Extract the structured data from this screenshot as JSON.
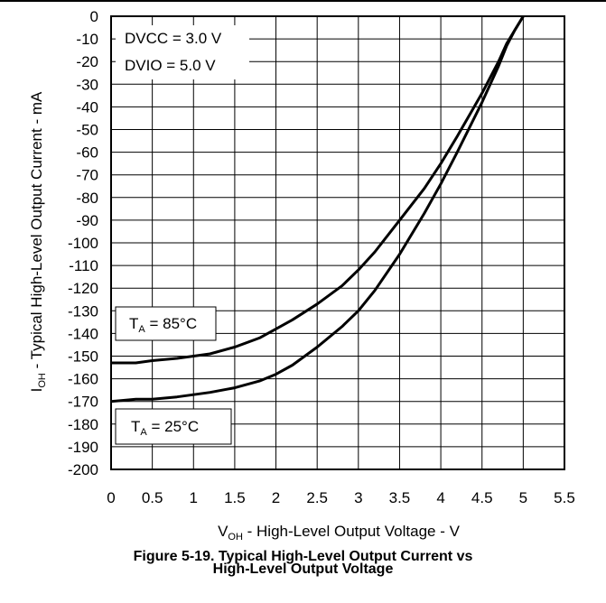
{
  "figure": {
    "caption_line1": "Figure 5-19. Typical High-Level Output Current vs",
    "caption_line2": "High-Level Output Voltage"
  },
  "chart_data": {
    "type": "line",
    "xlabel": {
      "main": "V",
      "sub": "OH",
      "rest": " - High-Level Output Voltage - V"
    },
    "ylabel": {
      "main": "I",
      "sub": "OH",
      "rest": " - Typical High-Level Output Current - mA"
    },
    "xlim": [
      0,
      5.5
    ],
    "ylim": [
      -200,
      0
    ],
    "xticks": [
      "0",
      "0.5",
      "1",
      "1.5",
      "2",
      "2.5",
      "3",
      "3.5",
      "4",
      "4.5",
      "5",
      "5.5"
    ],
    "yticks": [
      "0",
      "-10",
      "-20",
      "-30",
      "-40",
      "-50",
      "-60",
      "-70",
      "-80",
      "-90",
      "-100",
      "-110",
      "-120",
      "-130",
      "-140",
      "-150",
      "-160",
      "-170",
      "-180",
      "-190",
      "-200"
    ],
    "grid": true,
    "annotations": {
      "conditions": [
        "DVCC = 3.0 V",
        "DVIO = 5.0 V"
      ],
      "ta85": {
        "main": "T",
        "sub": "A",
        "rest": " = 85°C"
      },
      "ta25": {
        "main": "T",
        "sub": "A",
        "rest": " = 25°C"
      }
    },
    "series": [
      {
        "label_ref": "ta85",
        "x": [
          0,
          0.3,
          0.5,
          0.8,
          1.0,
          1.2,
          1.5,
          1.8,
          2.0,
          2.2,
          2.5,
          2.8,
          3.0,
          3.2,
          3.5,
          3.8,
          4.0,
          4.2,
          4.5,
          4.7,
          4.8,
          4.9,
          5.0
        ],
        "y": [
          -153,
          -153,
          -152,
          -151,
          -150,
          -149,
          -146,
          -142,
          -138,
          -134,
          -127,
          -119,
          -112,
          -104,
          -90,
          -76,
          -65,
          -53,
          -34,
          -20,
          -12,
          -6,
          0
        ]
      },
      {
        "label_ref": "ta25",
        "x": [
          0,
          0.3,
          0.5,
          0.8,
          1.0,
          1.2,
          1.5,
          1.8,
          2.0,
          2.2,
          2.5,
          2.8,
          3.0,
          3.2,
          3.5,
          3.8,
          4.0,
          4.2,
          4.5,
          4.7,
          4.8,
          4.9,
          5.0
        ],
        "y": [
          -170,
          -169,
          -169,
          -168,
          -167,
          -166,
          -164,
          -161,
          -158,
          -154,
          -146,
          -137,
          -130,
          -121,
          -105,
          -87,
          -74,
          -60,
          -38,
          -22,
          -13,
          -6,
          0
        ]
      }
    ]
  }
}
